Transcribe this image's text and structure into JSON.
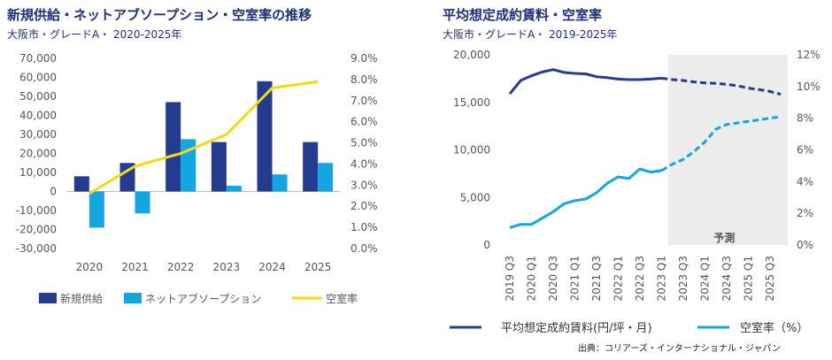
{
  "chart_data": [
    {
      "type": "bar",
      "title": "新規供給・ネットアブソープション・空室率の推移",
      "subtitle": "大阪市・グレードA・ 2020-2025年",
      "categories": [
        "2020",
        "2021",
        "2022",
        "2023",
        "2024",
        "2025"
      ],
      "ylim": [
        -30000,
        70000
      ],
      "y_ticks": [
        "70,000",
        "60,000",
        "50,000",
        "40,000",
        "30,000",
        "20,000",
        "10,000",
        "0",
        "-10,000",
        "-20,000",
        "-30,000"
      ],
      "y2lim": [
        0,
        9
      ],
      "y2_ticks": [
        "9.0%",
        "8.0%",
        "7.0%",
        "6.0%",
        "5.0%",
        "4.0%",
        "3.0%",
        "2.0%",
        "1.0%",
        "0.0%"
      ],
      "series": [
        {
          "name": "新規供給",
          "type": "bar",
          "color": "#253b8e",
          "values": [
            8000,
            15000,
            47000,
            26000,
            58000,
            26000
          ]
        },
        {
          "name": "ネットアブソープション",
          "type": "bar",
          "color": "#13a6e0",
          "values": [
            -19000,
            -11500,
            27500,
            3000,
            9000,
            15000
          ]
        },
        {
          "name": "空室率",
          "type": "line",
          "axis": "right",
          "color": "#f7d90e",
          "values": [
            2.6,
            3.9,
            4.5,
            5.4,
            7.6,
            7.9
          ]
        }
      ]
    },
    {
      "type": "line",
      "title": "平均想定成約賃料・空室率",
      "subtitle": "大阪市・グレードA・ 2019-2025年",
      "x": [
        "2019 Q3",
        "2019 Q4",
        "2020 Q1",
        "2020 Q2",
        "2020 Q3",
        "2020 Q4",
        "2021 Q1",
        "2021 Q2",
        "2021 Q3",
        "2021 Q4",
        "2022 Q1",
        "2022 Q2",
        "2022 Q3",
        "2022 Q4",
        "2023 Q1",
        "2023 Q2",
        "2023 Q3",
        "2023 Q4",
        "2024 Q1",
        "2024 Q2",
        "2024 Q3",
        "2024 Q4",
        "2025 Q1",
        "2025 Q2",
        "2025 Q3",
        "2025 Q4"
      ],
      "x_tick_labels": [
        "2019 Q3",
        "2020 Q1",
        "2020 Q3",
        "2021 Q1",
        "2021 Q3",
        "2022 Q1",
        "2022 Q3",
        "2023 Q1",
        "2023 Q3",
        "2024 Q1",
        "2024 Q3",
        "2025 Q1",
        "2025 Q3"
      ],
      "ylim": [
        0,
        20000
      ],
      "y_ticks": [
        "20,000",
        "15,000",
        "10,000",
        "5,000",
        "0"
      ],
      "y2lim": [
        0,
        12
      ],
      "y2_ticks": [
        "12%",
        "10%",
        "8%",
        "6%",
        "4%",
        "2%",
        "0%"
      ],
      "forecast_start_index": 15,
      "forecast_label": "予測",
      "series": [
        {
          "name": "平均想定成約賃料(円/坪・月)",
          "axis": "left",
          "color": "#253b8e",
          "values": [
            15900,
            17300,
            17800,
            18200,
            18450,
            18150,
            18050,
            18000,
            17700,
            17600,
            17450,
            17400,
            17400,
            17450,
            17550,
            17400,
            17300,
            17150,
            17050,
            17000,
            16900,
            16750,
            16500,
            16350,
            16150,
            15850
          ]
        },
        {
          "name": "空室率（%）",
          "axis": "right",
          "color": "#13a6e0",
          "values": [
            1.1,
            1.3,
            1.3,
            1.7,
            2.1,
            2.6,
            2.8,
            2.9,
            3.3,
            3.9,
            4.3,
            4.2,
            4.8,
            4.6,
            4.7,
            5.1,
            5.4,
            5.9,
            6.5,
            7.3,
            7.6,
            7.7,
            7.8,
            7.9,
            8.0,
            8.1
          ]
        }
      ]
    }
  ],
  "source": "出典：コリアーズ・インターナショナル・ジャパン"
}
